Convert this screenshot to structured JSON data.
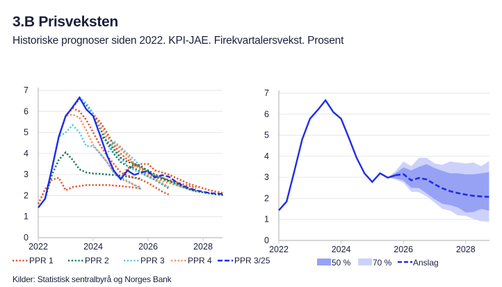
{
  "header": {
    "title": "3.B Prisveksten",
    "subtitle": "Historiske prognoser siden 2022. KPI-JAE. Firekvartalersvekst. Prosent"
  },
  "source": "Kilder: Statistisk sentralbyrå og Norges Bank",
  "colors": {
    "ppr1": "#e4572e",
    "ppr2": "#1a7a5a",
    "ppr3": "#5bc8e8",
    "ppr4": "#f3915a",
    "actual": "#1f2de8",
    "band50": "#97a2f5",
    "band70": "#cdd2fb",
    "grid": "#e6e6e6"
  },
  "chart_data": [
    {
      "type": "line",
      "xlim": [
        "2022Q1",
        "2028Q4"
      ],
      "ylim": [
        0,
        7
      ],
      "xticks": [
        "2022",
        "2024",
        "2026",
        "2028"
      ],
      "yticks": [
        "0",
        "1",
        "2",
        "3",
        "4",
        "5",
        "6",
        "7"
      ],
      "grid": true,
      "legend": "bottom",
      "legend_entries": [
        "PPR 1",
        "PPR 2",
        "PPR 3",
        "PPR 4",
        "PPR 3/25"
      ],
      "actual": {
        "start": "2022Q1",
        "values": [
          1.43,
          1.85,
          3.3,
          4.8,
          5.78,
          6.2,
          6.66,
          6.1,
          5.78,
          4.87,
          3.92,
          3.19,
          2.78,
          3.19,
          2.98
        ]
      },
      "ppr325": {
        "name": "PPR 3/25",
        "start": "2025Q3",
        "values": [
          2.98,
          3.1,
          3.15,
          2.86,
          2.97,
          2.9,
          2.67,
          2.48,
          2.34,
          2.25,
          2.18,
          2.12,
          2.09,
          2.07
        ]
      },
      "forecasts": [
        {
          "group": "PPR 1",
          "start": "2022Q1",
          "values": [
            1.6,
            2.3,
            2.75,
            2.85,
            2.25,
            2.4,
            2.45,
            2.5,
            2.5,
            2.5,
            2.5,
            2.48,
            2.45,
            2.42,
            2.38,
            2.33
          ]
        },
        {
          "group": "PPR 2",
          "start": "2022Q2",
          "values": [
            1.85,
            3.0,
            3.7,
            4.05,
            3.7,
            3.25,
            3.1,
            3.05,
            3.03,
            3.0,
            2.98,
            2.95,
            2.9,
            2.85,
            2.8
          ]
        },
        {
          "group": "PPR 3",
          "start": "2022Q3",
          "values": [
            3.3,
            4.8,
            5.0,
            5.35,
            5.0,
            4.35,
            4.35,
            4.0,
            3.6,
            3.1,
            2.85,
            2.7,
            2.5,
            2.3
          ]
        },
        {
          "group": "PPR 4",
          "start": "2022Q4",
          "values": [
            4.8,
            5.8,
            5.85,
            5.7,
            5.1,
            4.4,
            4.0,
            3.6,
            3.1,
            2.8,
            2.65,
            2.5,
            2.4
          ]
        },
        {
          "group": "PPR 1",
          "start": "2023Q1",
          "values": [
            5.78,
            6.15,
            6.0,
            5.6,
            5.0,
            4.4,
            3.9,
            3.5,
            3.1,
            2.95,
            2.85,
            2.75,
            2.6,
            2.4,
            2.2,
            2.05
          ]
        },
        {
          "group": "PPR 2",
          "start": "2023Q2",
          "values": [
            6.2,
            6.6,
            6.3,
            5.9,
            5.2,
            4.5,
            4.0,
            3.6,
            3.4,
            3.3,
            3.1,
            2.9,
            2.75,
            2.55,
            2.35
          ]
        },
        {
          "group": "PPR 3",
          "start": "2023Q3",
          "values": [
            6.66,
            6.4,
            5.9,
            5.5,
            4.9,
            4.3,
            3.8,
            3.4,
            3.2,
            3.05,
            2.9,
            2.75,
            2.55,
            2.4
          ]
        },
        {
          "group": "PPR 4",
          "start": "2023Q4",
          "values": [
            6.1,
            5.8,
            5.3,
            4.75,
            4.5,
            4.2,
            3.9,
            3.5,
            3.2,
            3.0,
            2.8,
            2.6,
            2.4
          ]
        },
        {
          "group": "PPR 1",
          "start": "2024Q1",
          "values": [
            5.78,
            5.5,
            5.0,
            4.4,
            4.0,
            3.7,
            3.5,
            3.3,
            3.1,
            2.95,
            2.85,
            2.75,
            2.65,
            2.55,
            2.45,
            2.35
          ]
        },
        {
          "group": "PPR 2",
          "start": "2024Q2",
          "values": [
            4.87,
            4.6,
            4.2,
            3.8,
            3.6,
            3.5,
            3.35,
            3.2,
            3.0,
            2.85,
            2.7,
            2.55,
            2.4,
            2.3,
            2.2
          ]
        },
        {
          "group": "PPR 3",
          "start": "2024Q3",
          "values": [
            3.92,
            4.6,
            4.3,
            4.0,
            3.7,
            3.35,
            3.1,
            2.95,
            2.8,
            2.65,
            2.5,
            2.4,
            2.3,
            2.25
          ]
        },
        {
          "group": "PPR 4",
          "start": "2024Q4",
          "values": [
            4.5,
            4.3,
            3.9,
            3.5,
            3.2,
            3.0,
            2.85,
            2.7,
            2.6,
            2.5,
            2.4,
            2.3,
            2.25
          ]
        },
        {
          "group": "PPR 1",
          "start": "2025Q1",
          "values": [
            2.78,
            3.3,
            3.4,
            3.5,
            3.5,
            3.2,
            3.1,
            3.0,
            2.85,
            2.7,
            2.55,
            2.45,
            2.35,
            2.25,
            2.18,
            2.12
          ]
        },
        {
          "group": "PPR 2",
          "start": "2025Q2",
          "values": [
            3.19,
            3.5,
            3.4,
            3.1,
            2.9,
            2.8,
            2.7,
            2.6,
            2.45,
            2.3,
            2.2,
            2.15,
            2.1,
            2.05,
            2.02
          ]
        }
      ]
    },
    {
      "type": "area",
      "xlim": [
        "2022Q1",
        "2028Q4"
      ],
      "ylim": [
        0,
        7
      ],
      "xticks": [
        "2022",
        "2024",
        "2026",
        "2028"
      ],
      "yticks": [
        "0",
        "1",
        "2",
        "3",
        "4",
        "5",
        "6",
        "7"
      ],
      "grid": true,
      "legend": "bottom",
      "legend_entries": [
        "50 %",
        "70 %",
        "Anslag"
      ],
      "actual": {
        "start": "2022Q1",
        "values": [
          1.43,
          1.85,
          3.3,
          4.8,
          5.78,
          6.2,
          6.66,
          6.1,
          5.78,
          4.87,
          3.92,
          3.19,
          2.78,
          3.19,
          2.98,
          3.1
        ]
      },
      "anslag": {
        "name": "Anslag",
        "start": "2025Q4",
        "values": [
          3.1,
          3.15,
          2.86,
          2.97,
          2.9,
          2.67,
          2.48,
          2.34,
          2.25,
          2.18,
          2.12,
          2.09,
          2.07
        ]
      },
      "bands": {
        "start": "2025Q3",
        "upper70": [
          3.0,
          3.3,
          3.75,
          3.53,
          3.92,
          3.92,
          3.66,
          3.59,
          3.75,
          3.7,
          3.66,
          3.7,
          3.53,
          3.77
        ],
        "upper50": [
          3.0,
          3.2,
          3.47,
          3.33,
          3.5,
          3.63,
          3.44,
          3.31,
          3.19,
          3.19,
          3.14,
          3.14,
          3.19,
          3.25
        ],
        "lower50": [
          3.0,
          2.95,
          2.85,
          2.5,
          2.49,
          2.23,
          1.96,
          1.74,
          1.68,
          1.57,
          1.33,
          1.35,
          1.5,
          1.41
        ],
        "lower70": [
          3.0,
          2.9,
          2.75,
          2.32,
          2.29,
          2.09,
          1.8,
          1.5,
          1.41,
          1.19,
          1.17,
          1.02,
          0.91,
          0.89
        ]
      }
    }
  ]
}
